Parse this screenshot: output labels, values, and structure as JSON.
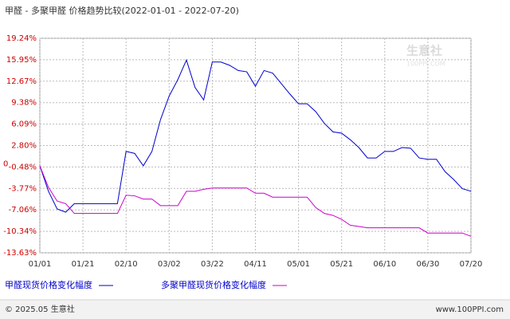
{
  "chart_data": {
    "type": "line",
    "title": "甲醛 - 多聚甲醛 价格趋势比较(2022-01-01 - 2022-07-20)",
    "categories": [
      "01/01",
      null,
      null,
      null,
      null,
      "01/21",
      null,
      null,
      null,
      null,
      "02/10",
      null,
      null,
      null,
      null,
      "03/02",
      null,
      null,
      null,
      null,
      "03/22",
      null,
      null,
      null,
      null,
      "04/11",
      null,
      null,
      null,
      null,
      "05/01",
      null,
      null,
      null,
      null,
      "05/21",
      null,
      null,
      null,
      null,
      "06/10",
      null,
      null,
      null,
      null,
      "06/30",
      null,
      null,
      null,
      null,
      "07/20"
    ],
    "series": [
      {
        "name": "甲醛现货价格变化幅度",
        "color": "#0000cc",
        "values": [
          -0.3,
          -4.2,
          -6.9,
          -7.4,
          -6.1,
          -6.1,
          -6.1,
          -6.1,
          -6.1,
          -6.1,
          1.9,
          1.6,
          -0.3,
          1.9,
          6.8,
          10.4,
          12.9,
          15.9,
          11.7,
          9.8,
          15.6,
          15.6,
          15.1,
          14.3,
          14.1,
          11.9,
          14.3,
          13.9,
          12.3,
          10.7,
          9.2,
          9.2,
          8.0,
          6.2,
          4.9,
          4.7,
          3.7,
          2.5,
          0.9,
          0.9,
          1.9,
          1.9,
          2.5,
          2.4,
          0.9,
          0.7,
          0.7,
          -1.2,
          -2.4,
          -3.8,
          -4.2
        ]
      },
      {
        "name": "多聚甲醛现货价格变化幅度",
        "color": "#cc00cc",
        "values": [
          -0.3,
          -3.6,
          -5.7,
          -6.1,
          -7.6,
          -7.6,
          -7.6,
          -7.6,
          -7.6,
          -7.6,
          -4.8,
          -4.9,
          -5.4,
          -5.4,
          -6.4,
          -6.4,
          -6.4,
          -4.2,
          -4.2,
          -3.9,
          -3.7,
          -3.7,
          -3.7,
          -3.7,
          -3.7,
          -4.5,
          -4.5,
          -5.1,
          -5.1,
          -5.1,
          -5.1,
          -5.1,
          -6.7,
          -7.6,
          -7.9,
          -8.5,
          -9.4,
          -9.6,
          -9.8,
          -9.8,
          -9.8,
          -9.8,
          -9.8,
          -9.8,
          -9.8,
          -10.6,
          -10.6,
          -10.6,
          -10.6,
          -10.6,
          -11.1
        ]
      }
    ],
    "ylim": [
      -13.63,
      19.24
    ],
    "yticks": [
      {
        "value": -13.63,
        "label": "-13.63%"
      },
      {
        "value": -10.34,
        "label": "-10.34%"
      },
      {
        "value": -7.06,
        "label": "-7.06%"
      },
      {
        "value": -3.77,
        "label": "-3.77%"
      },
      {
        "value": -0.48,
        "label": "-0.48%"
      },
      {
        "value": 2.8,
        "label": "2.80%"
      },
      {
        "value": 6.09,
        "label": "6.09%"
      },
      {
        "value": 9.38,
        "label": "9.38%"
      },
      {
        "value": 12.67,
        "label": "12.67%"
      },
      {
        "value": 15.95,
        "label": "15.95%"
      },
      {
        "value": 19.24,
        "label": "19.24%"
      }
    ],
    "zero_label": "0",
    "grid": true,
    "watermark": [
      "生意社",
      "100PPI.COM"
    ],
    "footer": {
      "left": "© 2025.05 生意社",
      "right": "www.100PPI.com"
    }
  }
}
